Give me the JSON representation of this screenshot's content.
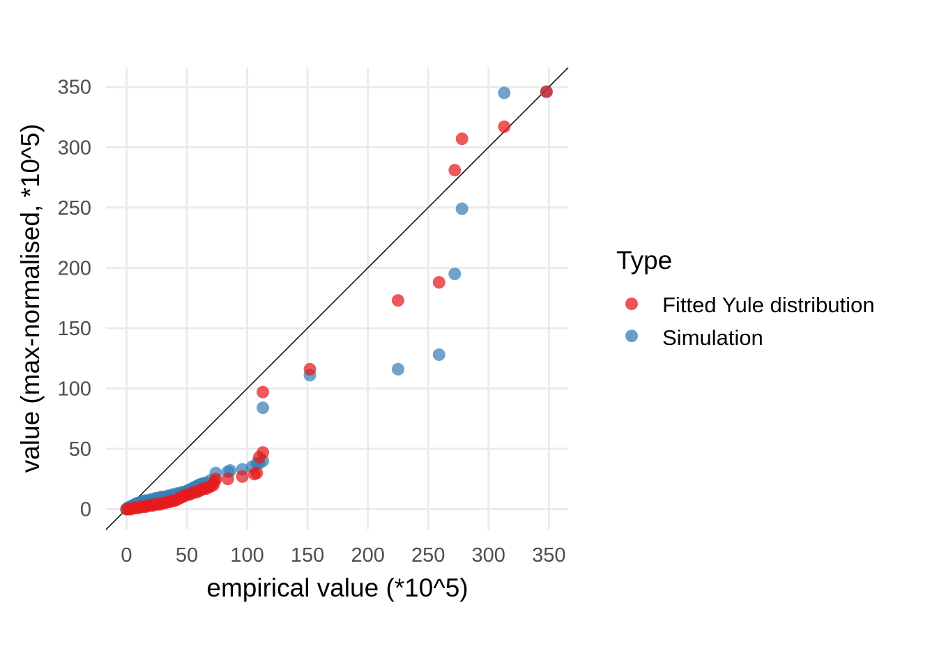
{
  "chart_data": {
    "type": "scatter",
    "xlabel": "empirical value (*10^5)",
    "ylabel": "value (max-normalised, *10^5)",
    "xlim": [
      -17,
      366
    ],
    "ylim": [
      -17,
      366
    ],
    "x_ticks": [
      0,
      50,
      100,
      150,
      200,
      250,
      300,
      350
    ],
    "y_ticks": [
      0,
      50,
      100,
      150,
      200,
      250,
      300,
      350
    ],
    "x_tick_labels": [
      "0",
      "50",
      "100",
      "150",
      "200",
      "250",
      "300",
      "350"
    ],
    "y_tick_labels": [
      "0",
      "50",
      "100",
      "150",
      "200",
      "250",
      "300",
      "350"
    ],
    "grid": true,
    "reference_line": "y = x",
    "legend": {
      "title": "Type",
      "placement": "right",
      "entries": [
        {
          "label": "Fitted Yule distribution",
          "color": "#e41a1c"
        },
        {
          "label": "Simulation",
          "color": "#377eb8"
        }
      ]
    },
    "series": [
      {
        "name": "Simulation",
        "color": "#377eb8",
        "points": [
          [
            0,
            0
          ],
          [
            1,
            1
          ],
          [
            2,
            1
          ],
          [
            3,
            2
          ],
          [
            4,
            2
          ],
          [
            5,
            3
          ],
          [
            6,
            3
          ],
          [
            7,
            4
          ],
          [
            8,
            4
          ],
          [
            9,
            5
          ],
          [
            10,
            5
          ],
          [
            11,
            5
          ],
          [
            12,
            6
          ],
          [
            14,
            6
          ],
          [
            15,
            7
          ],
          [
            16,
            7
          ],
          [
            18,
            7
          ],
          [
            20,
            8
          ],
          [
            22,
            8
          ],
          [
            24,
            9
          ],
          [
            26,
            9
          ],
          [
            28,
            10
          ],
          [
            30,
            10
          ],
          [
            32,
            10
          ],
          [
            34,
            11
          ],
          [
            36,
            11
          ],
          [
            38,
            12
          ],
          [
            40,
            12
          ],
          [
            42,
            13
          ],
          [
            44,
            13
          ],
          [
            46,
            14
          ],
          [
            48,
            14
          ],
          [
            50,
            15
          ],
          [
            52,
            16
          ],
          [
            54,
            17
          ],
          [
            56,
            18
          ],
          [
            58,
            19
          ],
          [
            60,
            20
          ],
          [
            62,
            21
          ],
          [
            64,
            21
          ],
          [
            66,
            22
          ],
          [
            70,
            24
          ],
          [
            74,
            30
          ],
          [
            84,
            31
          ],
          [
            86,
            32
          ],
          [
            96,
            33
          ],
          [
            104,
            35
          ],
          [
            108,
            38
          ],
          [
            110,
            38
          ],
          [
            113,
            40
          ],
          [
            113,
            84
          ],
          [
            152,
            111
          ],
          [
            225,
            116
          ],
          [
            259,
            128
          ],
          [
            272,
            195
          ],
          [
            278,
            249
          ],
          [
            313,
            345
          ],
          [
            348,
            346
          ]
        ]
      },
      {
        "name": "Fitted Yule distribution",
        "color": "#e41a1c",
        "points": [
          [
            0,
            0
          ],
          [
            2,
            0
          ],
          [
            4,
            0
          ],
          [
            6,
            1
          ],
          [
            8,
            1
          ],
          [
            10,
            1
          ],
          [
            12,
            2
          ],
          [
            14,
            2
          ],
          [
            16,
            2
          ],
          [
            18,
            3
          ],
          [
            20,
            3
          ],
          [
            22,
            3
          ],
          [
            24,
            4
          ],
          [
            26,
            4
          ],
          [
            28,
            4
          ],
          [
            30,
            5
          ],
          [
            32,
            5
          ],
          [
            34,
            6
          ],
          [
            36,
            6
          ],
          [
            38,
            7
          ],
          [
            40,
            7
          ],
          [
            42,
            8
          ],
          [
            44,
            9
          ],
          [
            46,
            10
          ],
          [
            48,
            11
          ],
          [
            50,
            12
          ],
          [
            52,
            12
          ],
          [
            54,
            13
          ],
          [
            56,
            14
          ],
          [
            58,
            14
          ],
          [
            60,
            15
          ],
          [
            62,
            16
          ],
          [
            64,
            17
          ],
          [
            66,
            17
          ],
          [
            68,
            18
          ],
          [
            70,
            19
          ],
          [
            72,
            20
          ],
          [
            73,
            23
          ],
          [
            74,
            25
          ],
          [
            84,
            25
          ],
          [
            96,
            27
          ],
          [
            106,
            29
          ],
          [
            108,
            30
          ],
          [
            110,
            43
          ],
          [
            113,
            47
          ],
          [
            113,
            97
          ],
          [
            152,
            116
          ],
          [
            225,
            173
          ],
          [
            259,
            188
          ],
          [
            272,
            281
          ],
          [
            278,
            307
          ],
          [
            313,
            317
          ],
          [
            348,
            346
          ]
        ]
      }
    ]
  }
}
